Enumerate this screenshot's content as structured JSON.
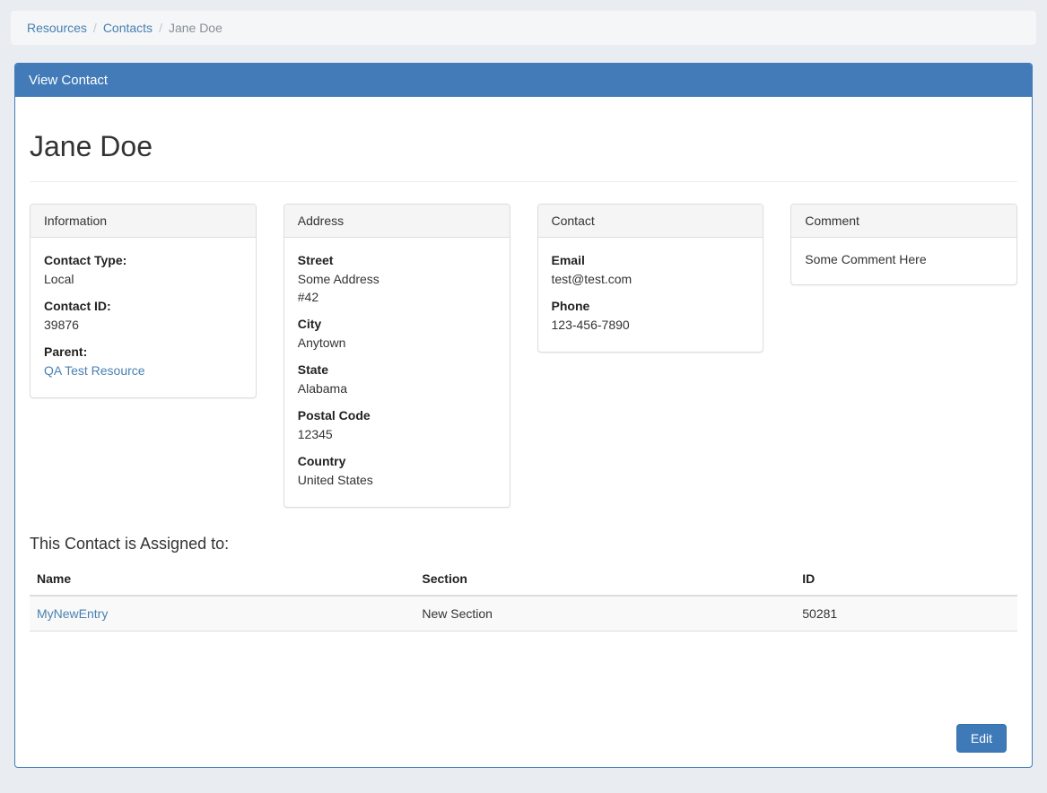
{
  "breadcrumb": {
    "separator": "/",
    "items": [
      {
        "label": "Resources"
      },
      {
        "label": "Contacts"
      },
      {
        "label": "Jane Doe"
      }
    ]
  },
  "panel": {
    "title": "View Contact"
  },
  "page": {
    "title": "Jane Doe"
  },
  "cards": {
    "information": {
      "title": "Information",
      "fields": [
        {
          "label": "Contact Type:",
          "value": "Local"
        },
        {
          "label": "Contact ID:",
          "value": "39876"
        },
        {
          "label": "Parent:",
          "value": "QA Test Resource"
        }
      ]
    },
    "address": {
      "title": "Address",
      "fields": [
        {
          "label": "Street",
          "value_lines": [
            "Some Address",
            "#42"
          ]
        },
        {
          "label": "City",
          "value": "Anytown"
        },
        {
          "label": "State",
          "value": "Alabama"
        },
        {
          "label": "Postal Code",
          "value": "12345"
        },
        {
          "label": "Country",
          "value": "United States"
        }
      ]
    },
    "contact": {
      "title": "Contact",
      "fields": [
        {
          "label": "Email",
          "value": "test@test.com"
        },
        {
          "label": "Phone",
          "value": "123-456-7890"
        }
      ]
    },
    "comment": {
      "title": "Comment",
      "text": "Some Comment Here"
    }
  },
  "assigned": {
    "heading": "This Contact is Assigned to:",
    "table": {
      "columns": [
        "Name",
        "Section",
        "ID"
      ],
      "rows": [
        {
          "name": "MyNewEntry",
          "section": "New Section",
          "id": "50281"
        }
      ]
    }
  },
  "actions": {
    "edit_label": "Edit"
  },
  "colors": {
    "accent_blue": "#427bb8",
    "link_blue": "#4a80b2",
    "card_header_bg": "#f5f5f5",
    "page_bg": "#e9edf1"
  }
}
